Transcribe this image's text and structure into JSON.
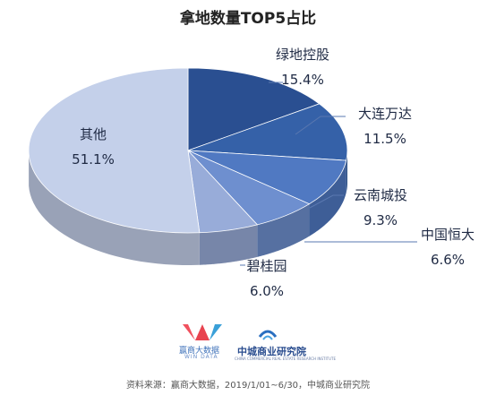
{
  "chart_data": {
    "type": "pie",
    "title": "拿地数量TOP5占比",
    "slices": [
      {
        "label": "绿地控股",
        "value": 15.4,
        "value_text": "15.4%",
        "color": "#2a4f91"
      },
      {
        "label": "大连万达",
        "value": 11.5,
        "value_text": "11.5%",
        "color": "#3561a8"
      },
      {
        "label": "云南城投",
        "value": 9.3,
        "value_text": "9.3%",
        "color": "#5079c2"
      },
      {
        "label": "中国恒大",
        "value": 6.6,
        "value_text": "6.6%",
        "color": "#6e8fcf"
      },
      {
        "label": "碧桂园",
        "value": 6.0,
        "value_text": "6.0%",
        "color": "#98acd9"
      },
      {
        "label": "其他",
        "value": 51.1,
        "value_text": "51.1%",
        "color": "#c4d0ea"
      }
    ]
  },
  "logos": {
    "win_name": "赢商大数据",
    "win_sub": "WIN DATA",
    "ccr_name": "中城商业研究院",
    "ccr_sub": "CHINA COMMERCIAL REAL ESTATE RESEARCH INSTITUTE"
  },
  "source": "资料来源：赢商大数据，2019/1/01~6/30，中城商业研究院"
}
